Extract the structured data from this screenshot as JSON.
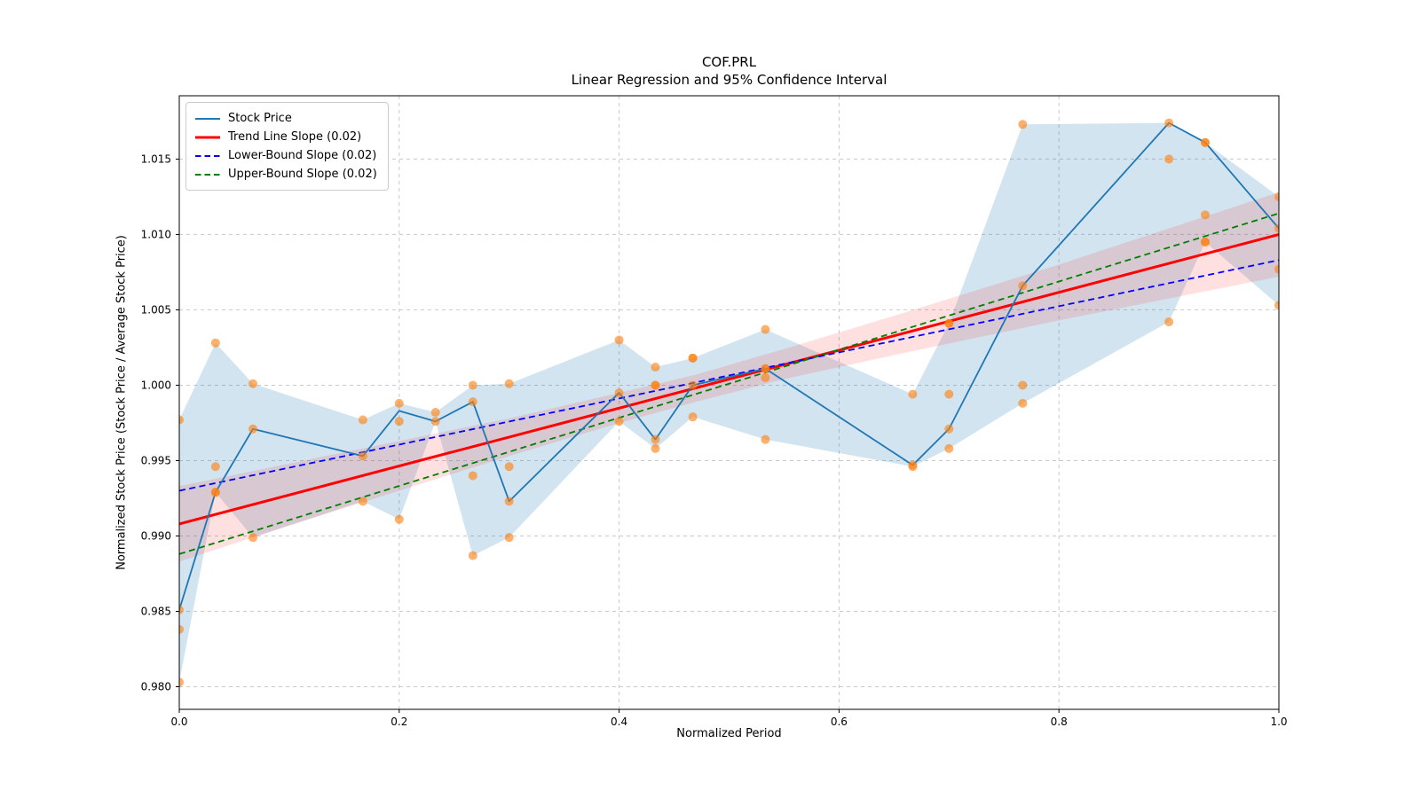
{
  "title": {
    "line1": "COF.PRL",
    "line2": "Linear Regression and 95% Confidence Interval"
  },
  "legend": {
    "items": [
      {
        "label": "Stock Price",
        "color": "#1f77b4",
        "dash": false,
        "width": 2
      },
      {
        "label": "Trend Line Slope (0.02)",
        "color": "#ff0000",
        "dash": false,
        "width": 3
      },
      {
        "label": "Lower-Bound Slope (0.02)",
        "color": "#0000ff",
        "dash": true,
        "width": 2
      },
      {
        "label": "Upper-Bound Slope (0.02)",
        "color": "#008000",
        "dash": true,
        "width": 2
      }
    ]
  },
  "chart_data": {
    "type": "line",
    "title": "COF.PRL",
    "subtitle": "Linear Regression and 95% Confidence Interval",
    "x_axis": {
      "label": "Normalized Period",
      "tick_values": [
        0.0,
        0.2,
        0.4,
        0.6,
        0.8,
        1.0
      ],
      "tick_labels": [
        "0.0",
        "0.2",
        "0.4",
        "0.6",
        "0.8",
        "1.0"
      ],
      "range": [
        0.0,
        1.0
      ]
    },
    "y_axis": {
      "label": "Normalized Stock Price (Stock Price / Average Stock Price)",
      "tick_values": [
        0.98,
        0.985,
        0.99,
        0.995,
        1.0,
        1.005,
        1.01,
        1.015
      ],
      "tick_labels": [
        "0.980",
        "0.985",
        "0.990",
        "0.995",
        "1.000",
        "1.005",
        "1.010",
        "1.015"
      ],
      "range": [
        0.9785,
        1.0192
      ]
    },
    "grid": {
      "on": true,
      "color": "#c9c9c9",
      "dashed": true
    },
    "x": [
      0.0,
      0.033,
      0.067,
      0.167,
      0.2,
      0.233,
      0.267,
      0.3,
      0.4,
      0.433,
      0.467,
      0.533,
      0.667,
      0.7,
      0.767,
      0.9,
      0.933,
      1.0
    ],
    "series": [
      {
        "name": "Stock Price",
        "type": "line",
        "color": "#1f77b4",
        "width": 1.8,
        "dash": false,
        "y": [
          0.9851,
          0.9929,
          0.9971,
          0.9953,
          0.9983,
          0.9976,
          0.9989,
          0.9923,
          0.9995,
          0.9964,
          1.0,
          1.0011,
          0.9947,
          0.9971,
          1.0066,
          1.0174,
          1.0161,
          1.0104
        ]
      },
      {
        "name": "Trend Line Slope (0.02)",
        "type": "line",
        "color": "#ff0000",
        "width": 3,
        "dash": false,
        "x": [
          0.0,
          1.0
        ],
        "y": [
          0.9908,
          1.01
        ],
        "slope": 0.02
      },
      {
        "name": "Lower-Bound Slope (0.02)",
        "type": "line",
        "color": "#0000ff",
        "width": 1.8,
        "dash": true,
        "x": [
          0.0,
          1.0
        ],
        "y": [
          0.993,
          1.0083
        ],
        "slope": 0.02
      },
      {
        "name": "Upper-Bound Slope (0.02)",
        "type": "line",
        "color": "#008000",
        "width": 1.8,
        "dash": true,
        "x": [
          0.0,
          1.0
        ],
        "y": [
          0.9888,
          1.0114
        ],
        "slope": 0.02
      }
    ],
    "scatter": {
      "name": "normalized price points",
      "color": "#ff7f0e",
      "opacity": 0.62,
      "radius": 5,
      "points": [
        {
          "x": 0.0,
          "values": [
            0.9977,
            0.9851,
            0.9838,
            0.9803
          ]
        },
        {
          "x": 0.033,
          "values": [
            1.0028,
            0.9946,
            0.9929,
            0.9929
          ]
        },
        {
          "x": 0.067,
          "values": [
            1.0001,
            0.9971,
            0.9899
          ]
        },
        {
          "x": 0.167,
          "values": [
            0.9977,
            0.9953,
            0.9923
          ]
        },
        {
          "x": 0.2,
          "values": [
            0.9988,
            0.9976,
            0.9911
          ]
        },
        {
          "x": 0.233,
          "values": [
            0.9982,
            0.9976
          ]
        },
        {
          "x": 0.267,
          "values": [
            1.0,
            0.9989,
            0.994,
            0.9887
          ]
        },
        {
          "x": 0.3,
          "values": [
            1.0001,
            0.9946,
            0.9923,
            0.9899
          ]
        },
        {
          "x": 0.4,
          "values": [
            1.003,
            0.9995,
            0.9976
          ]
        },
        {
          "x": 0.433,
          "values": [
            1.0012,
            1.0,
            1.0,
            0.9964,
            0.9958
          ]
        },
        {
          "x": 0.467,
          "values": [
            1.0018,
            1.0018,
            1.0,
            0.9979
          ]
        },
        {
          "x": 0.533,
          "values": [
            1.0037,
            1.0011,
            1.0011,
            1.0005,
            0.9964
          ]
        },
        {
          "x": 0.667,
          "values": [
            0.9994,
            0.9947,
            0.9946
          ]
        },
        {
          "x": 0.7,
          "values": [
            1.0041,
            1.0041,
            0.9994,
            0.9971,
            0.9958
          ]
        },
        {
          "x": 0.767,
          "values": [
            1.0173,
            1.0066,
            1.0,
            0.9988
          ]
        },
        {
          "x": 0.9,
          "values": [
            1.0174,
            1.015,
            1.0042
          ]
        },
        {
          "x": 0.933,
          "values": [
            1.0161,
            1.0161,
            1.0113,
            1.0095,
            1.0095
          ]
        },
        {
          "x": 1.0,
          "values": [
            1.0125,
            1.0104,
            1.0077,
            1.0053
          ]
        }
      ]
    },
    "stock_minmax_band": {
      "color": "#1f77b4",
      "opacity": 0.2,
      "upper": [
        0.9977,
        1.0028,
        1.0001,
        0.9977,
        0.9988,
        0.9982,
        1.0,
        1.0001,
        1.003,
        1.0012,
        1.0018,
        1.0037,
        0.9994,
        1.0041,
        1.0173,
        1.0174,
        1.0161,
        1.0125
      ],
      "lower": [
        0.9803,
        0.9929,
        0.9899,
        0.9923,
        0.9911,
        0.9976,
        0.9887,
        0.9899,
        0.9976,
        0.9958,
        0.9979,
        0.9964,
        0.9946,
        0.9958,
        0.9988,
        1.0042,
        1.0095,
        1.0053
      ]
    },
    "trend_ci_band": {
      "color": "#ff0000",
      "opacity": 0.12,
      "x": [
        0.0,
        0.1,
        0.2,
        0.3,
        0.4,
        0.47,
        0.55,
        0.65,
        0.8,
        1.0
      ],
      "upper": [
        0.9933,
        0.9948,
        0.9963,
        0.9978,
        0.9995,
        1.0007,
        1.0024,
        1.0046,
        1.008,
        1.0128
      ],
      "lower": [
        0.9883,
        0.9907,
        0.993,
        0.9953,
        0.9975,
        0.9989,
        1.0004,
        1.002,
        1.0043,
        1.0072
      ]
    }
  }
}
